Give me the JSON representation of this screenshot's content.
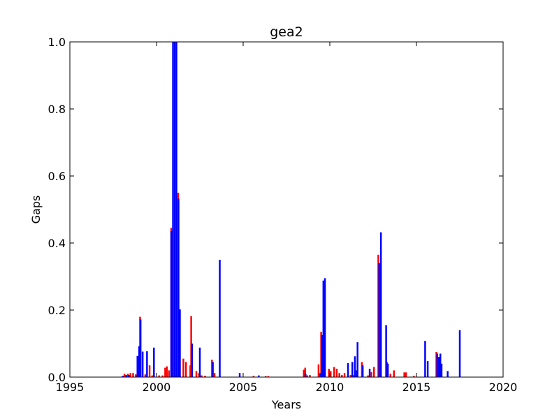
{
  "chart_data": {
    "type": "bar",
    "title": "gea2",
    "xlabel": "Years",
    "ylabel": "Gaps",
    "xlim": [
      1995,
      2020
    ],
    "ylim": [
      0,
      1.0
    ],
    "xticks": [
      "1995",
      "2000",
      "2005",
      "2010",
      "2015",
      "2020"
    ],
    "yticks": [
      "0.0",
      "0.2",
      "0.4",
      "0.6",
      "0.8",
      "1.0"
    ],
    "grid": false,
    "legend": "none",
    "series": [
      {
        "color": "#ff0000",
        "bars": [
          {
            "x": 1998.15,
            "y": 0.01
          },
          {
            "x": 1998.35,
            "y": 0.01
          },
          {
            "x": 1998.5,
            "y": 0.012
          },
          {
            "x": 1998.65,
            "y": 0.012
          },
          {
            "x": 1998.8,
            "y": 0.008
          },
          {
            "x": 1999.05,
            "y": 0.18
          },
          {
            "x": 1999.35,
            "y": 0.008
          },
          {
            "x": 1999.6,
            "y": 0.035
          },
          {
            "x": 1999.75,
            "y": 0.005
          },
          {
            "x": 2000.15,
            "y": 0.005
          },
          {
            "x": 2000.35,
            "y": 0.005
          },
          {
            "x": 2000.5,
            "y": 0.028
          },
          {
            "x": 2000.6,
            "y": 0.032
          },
          {
            "x": 2000.72,
            "y": 0.02
          },
          {
            "x": 2000.85,
            "y": 0.445
          },
          {
            "x": 2001.25,
            "y": 0.55
          },
          {
            "x": 2001.55,
            "y": 0.055
          },
          {
            "x": 2001.7,
            "y": 0.045
          },
          {
            "x": 2001.95,
            "y": 0.035
          },
          {
            "x": 2002.0,
            "y": 0.182
          },
          {
            "x": 2002.3,
            "y": 0.018
          },
          {
            "x": 2002.45,
            "y": 0.012
          },
          {
            "x": 2002.6,
            "y": 0.005
          },
          {
            "x": 2002.8,
            "y": 0.004
          },
          {
            "x": 2003.2,
            "y": 0.052
          },
          {
            "x": 2003.35,
            "y": 0.012
          },
          {
            "x": 2005.6,
            "y": 0.004
          },
          {
            "x": 2006.3,
            "y": 0.003
          },
          {
            "x": 2006.45,
            "y": 0.003
          },
          {
            "x": 2008.5,
            "y": 0.022
          },
          {
            "x": 2008.58,
            "y": 0.028
          },
          {
            "x": 2008.7,
            "y": 0.005
          },
          {
            "x": 2008.85,
            "y": 0.006
          },
          {
            "x": 2009.35,
            "y": 0.038
          },
          {
            "x": 2009.5,
            "y": 0.135
          },
          {
            "x": 2009.95,
            "y": 0.025
          },
          {
            "x": 2010.05,
            "y": 0.018
          },
          {
            "x": 2010.25,
            "y": 0.03
          },
          {
            "x": 2010.4,
            "y": 0.025
          },
          {
            "x": 2010.55,
            "y": 0.012
          },
          {
            "x": 2010.7,
            "y": 0.006
          },
          {
            "x": 2010.85,
            "y": 0.012
          },
          {
            "x": 2011.2,
            "y": 0.006
          },
          {
            "x": 2011.35,
            "y": 0.006
          },
          {
            "x": 2011.85,
            "y": 0.045
          },
          {
            "x": 2012.2,
            "y": 0.005
          },
          {
            "x": 2012.4,
            "y": 0.015
          },
          {
            "x": 2012.55,
            "y": 0.03
          },
          {
            "x": 2012.8,
            "y": 0.365
          },
          {
            "x": 2013.3,
            "y": 0.045
          },
          {
            "x": 2013.5,
            "y": 0.01
          },
          {
            "x": 2013.7,
            "y": 0.02
          },
          {
            "x": 2014.3,
            "y": 0.014
          },
          {
            "x": 2014.4,
            "y": 0.014
          },
          {
            "x": 2014.85,
            "y": 0.004
          },
          {
            "x": 2016.15,
            "y": 0.075
          }
        ]
      },
      {
        "color": "#0000ff",
        "bars": [
          {
            "x": 1998.05,
            "y": 0.004
          },
          {
            "x": 1998.25,
            "y": 0.006
          },
          {
            "x": 1998.4,
            "y": 0.006
          },
          {
            "x": 1998.9,
            "y": 0.063
          },
          {
            "x": 1999.0,
            "y": 0.092
          },
          {
            "x": 1999.08,
            "y": 0.172
          },
          {
            "x": 1999.2,
            "y": 0.076
          },
          {
            "x": 1999.45,
            "y": 0.077
          },
          {
            "x": 1999.85,
            "y": 0.088
          },
          {
            "x": 2000.85,
            "y": 0.435
          },
          {
            "x": 2000.95,
            "y": 1.0
          },
          {
            "x": 2001.05,
            "y": 1.0
          },
          {
            "x": 2001.15,
            "y": 1.0
          },
          {
            "x": 2001.27,
            "y": 0.532
          },
          {
            "x": 2001.35,
            "y": 0.202
          },
          {
            "x": 2002.05,
            "y": 0.1
          },
          {
            "x": 2002.5,
            "y": 0.088
          },
          {
            "x": 2003.25,
            "y": 0.045
          },
          {
            "x": 2003.65,
            "y": 0.35
          },
          {
            "x": 2004.8,
            "y": 0.012
          },
          {
            "x": 2005.9,
            "y": 0.005
          },
          {
            "x": 2008.6,
            "y": 0.01
          },
          {
            "x": 2009.45,
            "y": 0.012
          },
          {
            "x": 2009.55,
            "y": 0.125
          },
          {
            "x": 2009.63,
            "y": 0.288
          },
          {
            "x": 2009.72,
            "y": 0.295
          },
          {
            "x": 2011.05,
            "y": 0.042
          },
          {
            "x": 2011.3,
            "y": 0.045
          },
          {
            "x": 2011.45,
            "y": 0.062
          },
          {
            "x": 2011.55,
            "y": 0.02
          },
          {
            "x": 2011.6,
            "y": 0.104
          },
          {
            "x": 2011.9,
            "y": 0.035
          },
          {
            "x": 2012.3,
            "y": 0.025
          },
          {
            "x": 2012.85,
            "y": 0.34
          },
          {
            "x": 2012.95,
            "y": 0.432
          },
          {
            "x": 2013.25,
            "y": 0.155
          },
          {
            "x": 2013.35,
            "y": 0.04
          },
          {
            "x": 2015.5,
            "y": 0.108
          },
          {
            "x": 2015.65,
            "y": 0.048
          },
          {
            "x": 2016.2,
            "y": 0.07
          },
          {
            "x": 2016.3,
            "y": 0.06
          },
          {
            "x": 2016.38,
            "y": 0.07
          },
          {
            "x": 2016.45,
            "y": 0.04
          },
          {
            "x": 2016.8,
            "y": 0.018
          },
          {
            "x": 2017.5,
            "y": 0.14
          }
        ]
      }
    ]
  }
}
